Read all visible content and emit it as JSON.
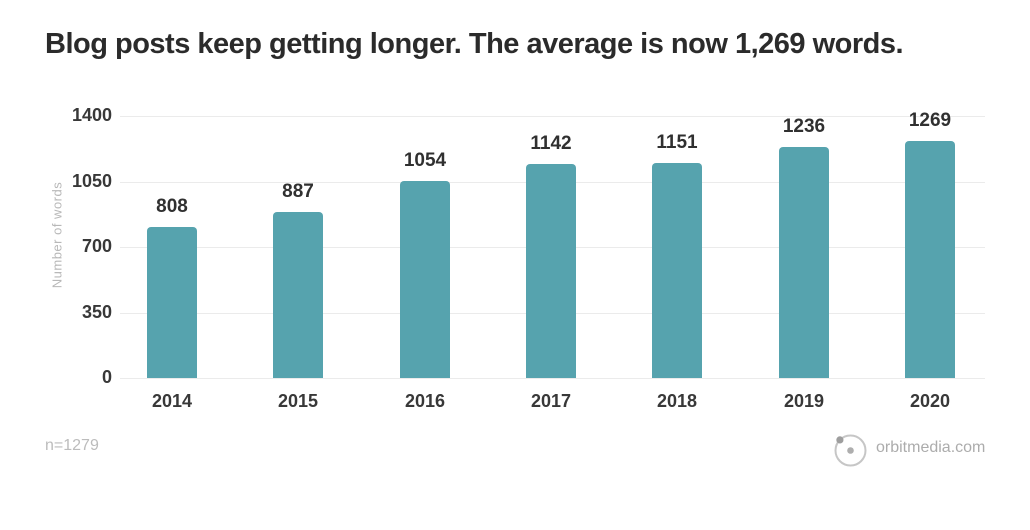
{
  "header": {
    "title": "Blog posts keep getting longer. The average is now 1,269 words."
  },
  "chart_data": {
    "type": "bar",
    "categories": [
      "2014",
      "2015",
      "2016",
      "2017",
      "2018",
      "2019",
      "2020"
    ],
    "values": [
      808,
      887,
      1054,
      1142,
      1151,
      1236,
      1269
    ],
    "title": "Blog posts keep getting longer. The average is now 1,269 words.",
    "xlabel": "",
    "ylabel": "Number of words",
    "ylim": [
      0,
      1400
    ],
    "yticks": [
      0,
      350,
      700,
      1050,
      1400
    ],
    "grid": true,
    "legend": "none",
    "value_labels": true,
    "bar_color": "#56a3ae"
  },
  "footer": {
    "sample_size": "n=1279",
    "brand": "orbitmedia.com",
    "logo": "orbit-logo"
  },
  "colors": {
    "background": "#ffffff",
    "title_text": "#2b2b2b",
    "axis_text": "#383838",
    "muted_text": "#bcbcbc",
    "gridline": "#ebebeb",
    "bar": "#56a3ae",
    "logo_gray": "#c6c6c6"
  }
}
